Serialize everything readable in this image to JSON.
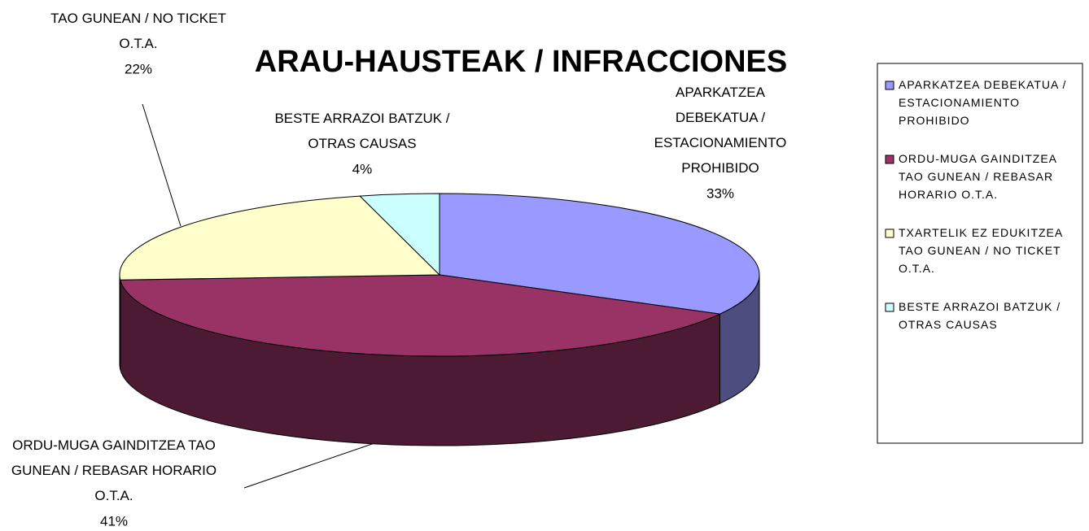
{
  "chart_data": {
    "type": "pie",
    "title": "ARAU-HAUSTEAK / INFRACCIONES",
    "categories": [
      "APARKATZEA DEBEKATUA / ESTACIONAMIENTO PROHIBIDO",
      "ORDU-MUGA GAINDITZEA TAO GUNEAN / REBASAR HORARIO O.T.A.",
      "TXARTELIK EZ EDUKITZEA TAO GUNEAN / NO TICKET O.T.A.",
      "BESTE ARRAZOI BATZUK / OTRAS CAUSAS"
    ],
    "values": [
      33,
      41,
      22,
      4
    ],
    "value_labels": [
      "33%",
      "41%",
      "22%",
      "4%"
    ],
    "colors": [
      "#9999ff",
      "#993366",
      "#ffffcc",
      "#ccffff"
    ],
    "legend": "right"
  }
}
